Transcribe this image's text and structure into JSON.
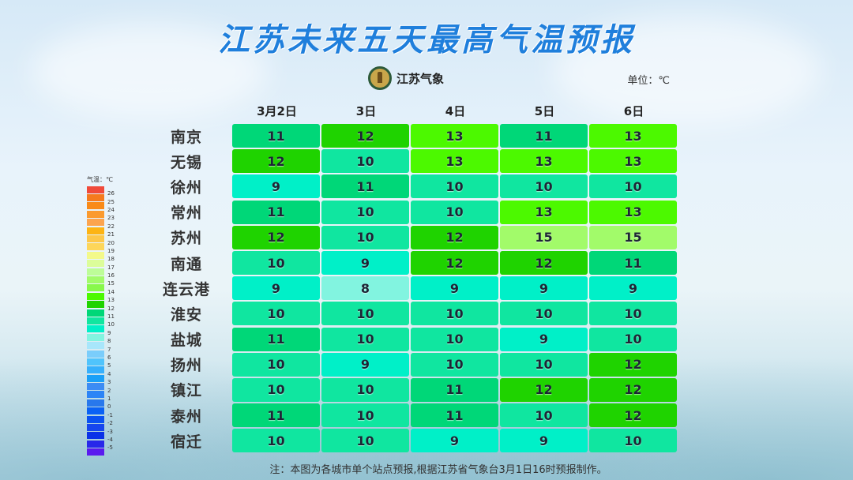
{
  "title": "江苏未来五天最高气温预报",
  "logo": {
    "icon": "jiangsu-meteorology-emblem-icon",
    "text": "江苏气象"
  },
  "unit": "单位：℃",
  "note": "注：本图为各城市单个站点预报,根据江苏省气象台3月1日16时预报制作。",
  "legend": {
    "title": "气温：℃",
    "items": [
      {
        "label": "26",
        "color": "#f04a3a"
      },
      {
        "label": "25",
        "color": "#f57a1e"
      },
      {
        "label": "24",
        "color": "#f98a18"
      },
      {
        "label": "23",
        "color": "#fb9a2e"
      },
      {
        "label": "22",
        "color": "#fca44e"
      },
      {
        "label": "21",
        "color": "#fdb414"
      },
      {
        "label": "20",
        "color": "#fdc84a"
      },
      {
        "label": "19",
        "color": "#fdd65a"
      },
      {
        "label": "18",
        "color": "#f3f98a"
      },
      {
        "label": "17",
        "color": "#dcfd9a"
      },
      {
        "label": "16",
        "color": "#bdfd98"
      },
      {
        "label": "15",
        "color": "#a2fb6a"
      },
      {
        "label": "14",
        "color": "#88f84c"
      },
      {
        "label": "13",
        "color": "#4cf900"
      },
      {
        "label": "12",
        "color": "#1fd300"
      },
      {
        "label": "11",
        "color": "#00d778"
      },
      {
        "label": "10",
        "color": "#10e6a0"
      },
      {
        "label": "9",
        "color": "#00f0c8"
      },
      {
        "label": "8",
        "color": "#82f4e0"
      },
      {
        "label": "7",
        "color": "#a8e6fb"
      },
      {
        "label": "6",
        "color": "#7acdfb"
      },
      {
        "label": "5",
        "color": "#50c4fc"
      },
      {
        "label": "4",
        "color": "#36b0fc"
      },
      {
        "label": "3",
        "color": "#1aa0f8"
      },
      {
        "label": "2",
        "color": "#3c8cf4"
      },
      {
        "label": "1",
        "color": "#2c84f6"
      },
      {
        "label": "0",
        "color": "#2878ec"
      },
      {
        "label": "-1",
        "color": "#0a62f5"
      },
      {
        "label": "-2",
        "color": "#0a52f2"
      },
      {
        "label": "-3",
        "color": "#1646ee"
      },
      {
        "label": "-4",
        "color": "#0a32e8"
      },
      {
        "label": "-5",
        "color": "#2828ea"
      },
      {
        "label": "",
        "color": "#5a1aef"
      }
    ]
  },
  "chart_data": {
    "type": "heatmap",
    "title": "江苏未来五天最高气温预报",
    "unit": "℃",
    "columns": [
      "3月2日",
      "3日",
      "4日",
      "5日",
      "6日"
    ],
    "rows": [
      "南京",
      "无锡",
      "徐州",
      "常州",
      "苏州",
      "南通",
      "连云港",
      "淮安",
      "盐城",
      "扬州",
      "镇江",
      "泰州",
      "宿迁"
    ],
    "values": [
      [
        11,
        12,
        13,
        11,
        13
      ],
      [
        12,
        10,
        13,
        13,
        13
      ],
      [
        9,
        11,
        10,
        10,
        10
      ],
      [
        11,
        10,
        10,
        13,
        13
      ],
      [
        12,
        10,
        12,
        15,
        15
      ],
      [
        10,
        9,
        12,
        12,
        11
      ],
      [
        9,
        8,
        9,
        9,
        9
      ],
      [
        10,
        10,
        10,
        10,
        10
      ],
      [
        11,
        10,
        10,
        9,
        10
      ],
      [
        10,
        9,
        10,
        10,
        12
      ],
      [
        10,
        10,
        11,
        12,
        12
      ],
      [
        11,
        10,
        11,
        10,
        12
      ],
      [
        10,
        10,
        9,
        9,
        10
      ]
    ],
    "color_scale_range": [
      -5,
      26
    ]
  },
  "cell_colors": {
    "8": "#82f4e0",
    "9": "#00f0c8",
    "10": "#10e6a0",
    "11": "#00d778",
    "12": "#1fd300",
    "13": "#4cf900",
    "15": "#a2fb6a"
  }
}
